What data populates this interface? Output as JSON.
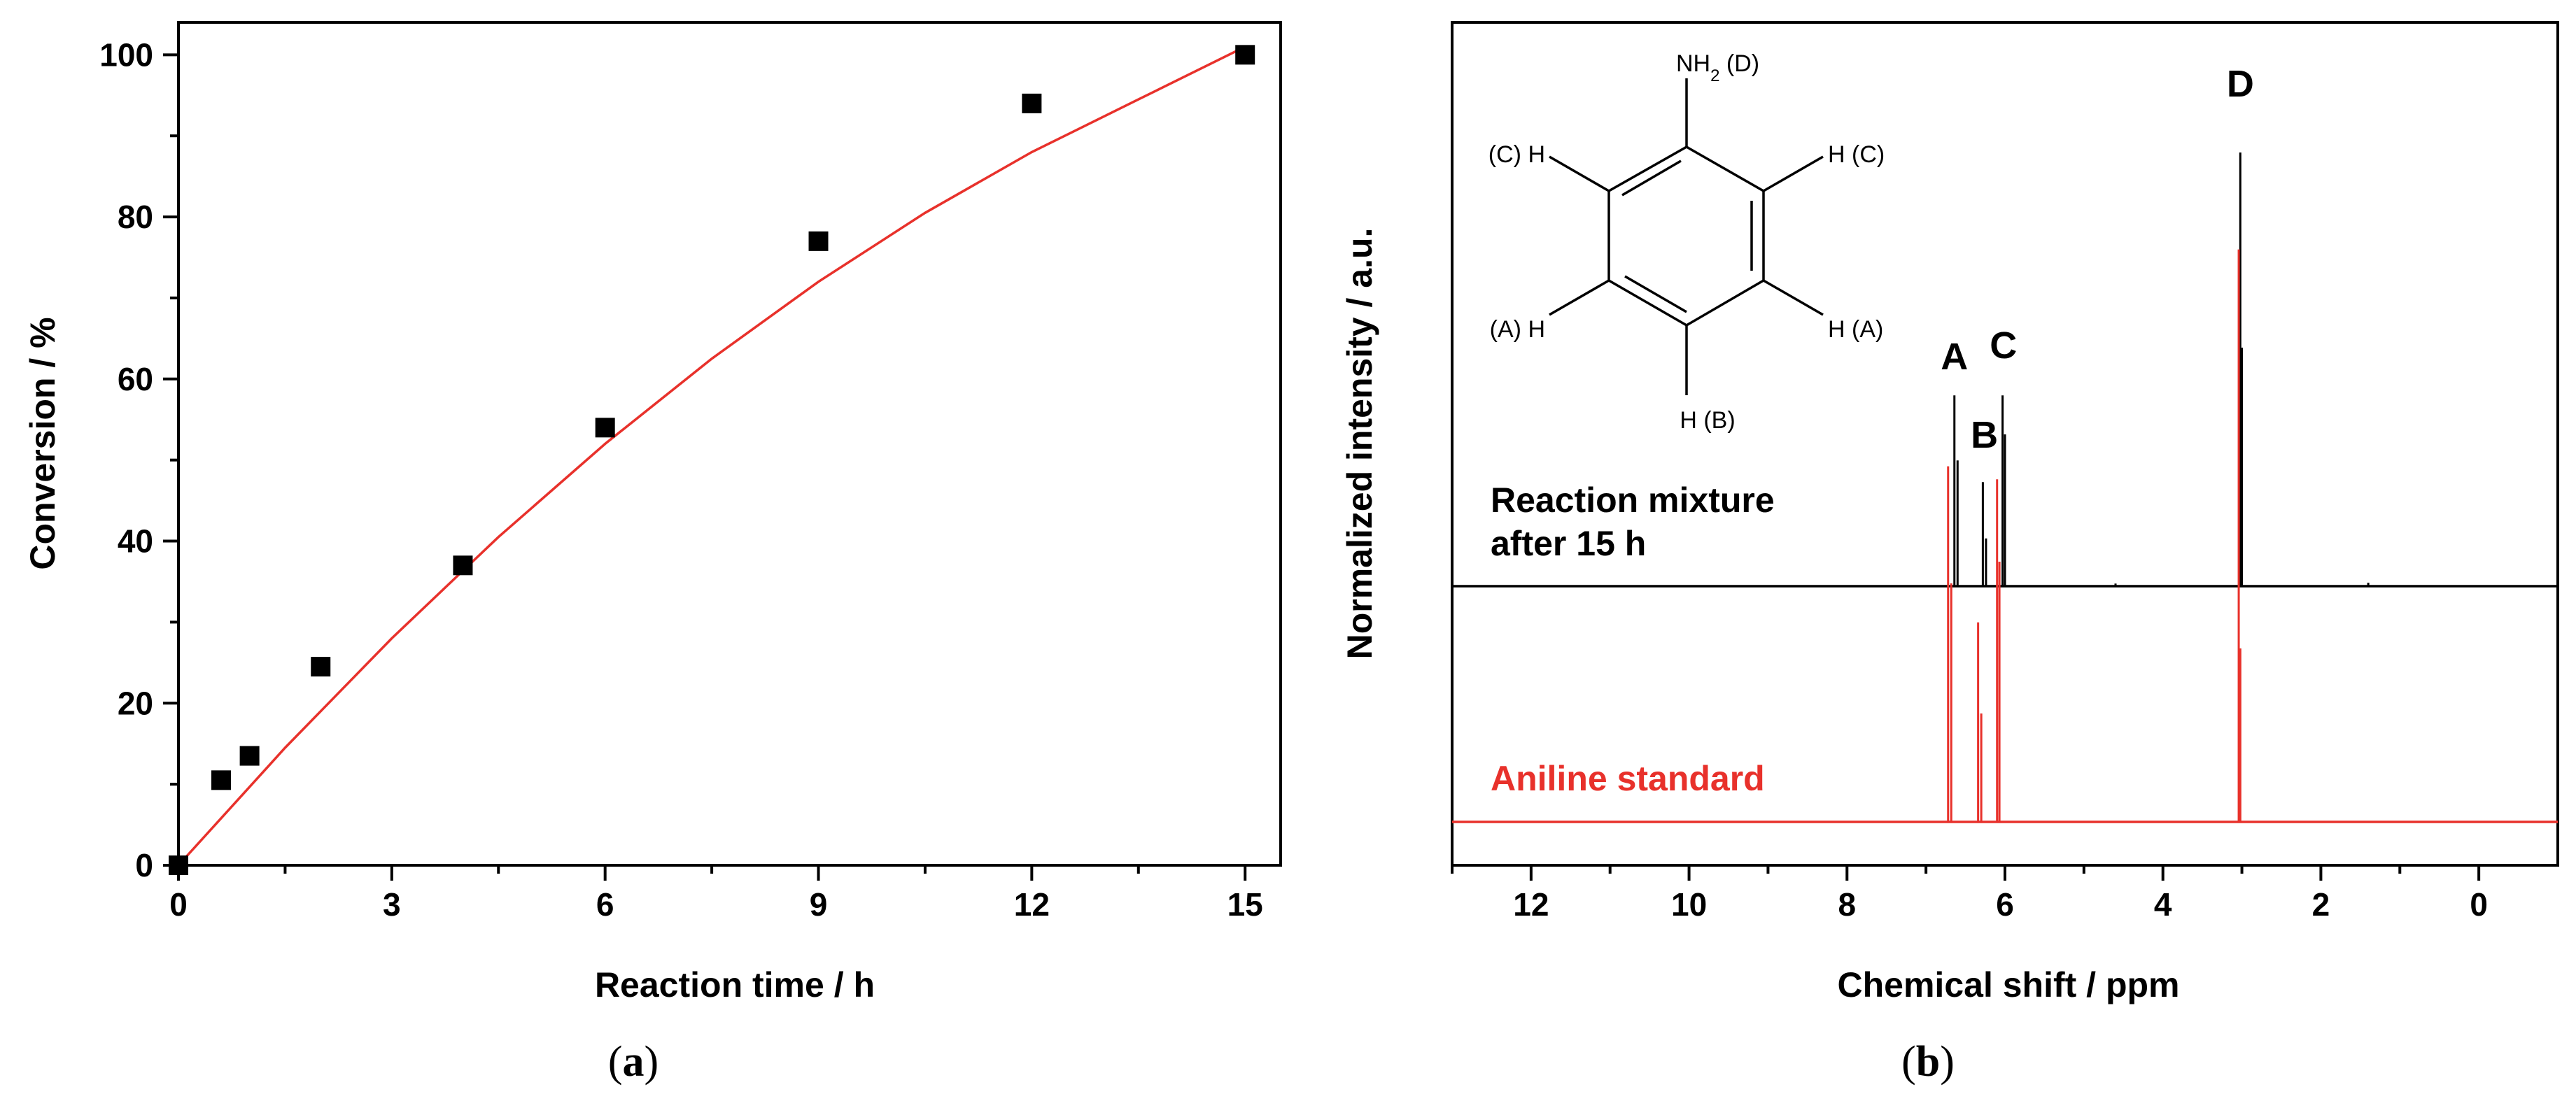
{
  "chart_data": [
    {
      "panel": "(a)",
      "type": "scatter",
      "xlabel": "Reaction time / h",
      "ylabel": "Conversion / %",
      "xlim": [
        0,
        15.5
      ],
      "ylim": [
        0,
        104
      ],
      "xticks": [
        0,
        3,
        6,
        9,
        12,
        15
      ],
      "yticks": [
        0,
        20,
        40,
        60,
        80,
        100
      ],
      "grid": false,
      "series": [
        {
          "marker": "square",
          "color": "#000000",
          "points": [
            {
              "x": 0,
              "y": 0
            },
            {
              "x": 0.6,
              "y": 10.5
            },
            {
              "x": 1,
              "y": 13.5
            },
            {
              "x": 2,
              "y": 24.5
            },
            {
              "x": 4,
              "y": 37
            },
            {
              "x": 6,
              "y": 54
            },
            {
              "x": 9,
              "y": 77
            },
            {
              "x": 12,
              "y": 94
            },
            {
              "x": 15,
              "y": 100
            }
          ]
        },
        {
          "type": "line",
          "color": "#e8312b",
          "points": [
            {
              "x": 0,
              "y": 0
            },
            {
              "x": 1.5,
              "y": 14.5
            },
            {
              "x": 3,
              "y": 28
            },
            {
              "x": 4.5,
              "y": 40.5
            },
            {
              "x": 6,
              "y": 52
            },
            {
              "x": 7.5,
              "y": 62.5
            },
            {
              "x": 9,
              "y": 72
            },
            {
              "x": 10.5,
              "y": 80.5
            },
            {
              "x": 12,
              "y": 88
            },
            {
              "x": 13.5,
              "y": 94.5
            },
            {
              "x": 15,
              "y": 101
            }
          ]
        }
      ]
    },
    {
      "panel": "(b)",
      "type": "line",
      "xlabel": "Chemical shift / ppm",
      "ylabel": "Normalized intensity / a.u.",
      "xlim": [
        13,
        -1
      ],
      "xticks": [
        12,
        10,
        8,
        6,
        4,
        2,
        0
      ],
      "grid": false,
      "series": [
        {
          "name": "Reaction mixture\nafter 15 h",
          "color": "#000000",
          "peaks": [
            {
              "ppm": 6.64,
              "intensity": 0.44
            },
            {
              "ppm": 6.6,
              "intensity": 0.29
            },
            {
              "ppm": 6.28,
              "intensity": 0.24
            },
            {
              "ppm": 6.24,
              "intensity": 0.11
            },
            {
              "ppm": 6.03,
              "intensity": 0.44
            },
            {
              "ppm": 6.0,
              "intensity": 0.35
            },
            {
              "ppm": 3.02,
              "intensity": 1.0
            },
            {
              "ppm": 3.0,
              "intensity": 0.55
            },
            {
              "ppm": 4.6,
              "intensity": 0.006
            },
            {
              "ppm": 1.4,
              "intensity": 0.008
            }
          ]
        },
        {
          "name": "Aniline standard",
          "color": "#e8312b",
          "peaks": [
            {
              "ppm": 6.72,
              "intensity": 0.82
            },
            {
              "ppm": 6.68,
              "intensity": 0.55
            },
            {
              "ppm": 6.34,
              "intensity": 0.46
            },
            {
              "ppm": 6.3,
              "intensity": 0.25
            },
            {
              "ppm": 6.1,
              "intensity": 0.79
            },
            {
              "ppm": 6.07,
              "intensity": 0.6
            },
            {
              "ppm": 3.04,
              "intensity": 1.32
            },
            {
              "ppm": 3.02,
              "intensity": 0.4
            }
          ]
        }
      ],
      "peak_labels": [
        {
          "text": "A",
          "ppm": 6.64
        },
        {
          "text": "B",
          "ppm": 6.26
        },
        {
          "text": "C",
          "ppm": 6.02
        },
        {
          "text": "D",
          "ppm": 3.02
        }
      ],
      "structure": {
        "name": "aniline",
        "labels": {
          "top": "NH",
          "top_sub": "2",
          "top_suffix": " (D)",
          "upper_left": "(C) H",
          "upper_right": "H (C)",
          "lower_left": "(A) H",
          "lower_right": "H (A)",
          "bottom": "H (B)"
        }
      }
    }
  ],
  "panel_labels": {
    "a": {
      "open": "(",
      "letter": "a",
      "close": ")"
    },
    "b": {
      "open": "(",
      "letter": "b",
      "close": ")"
    }
  }
}
